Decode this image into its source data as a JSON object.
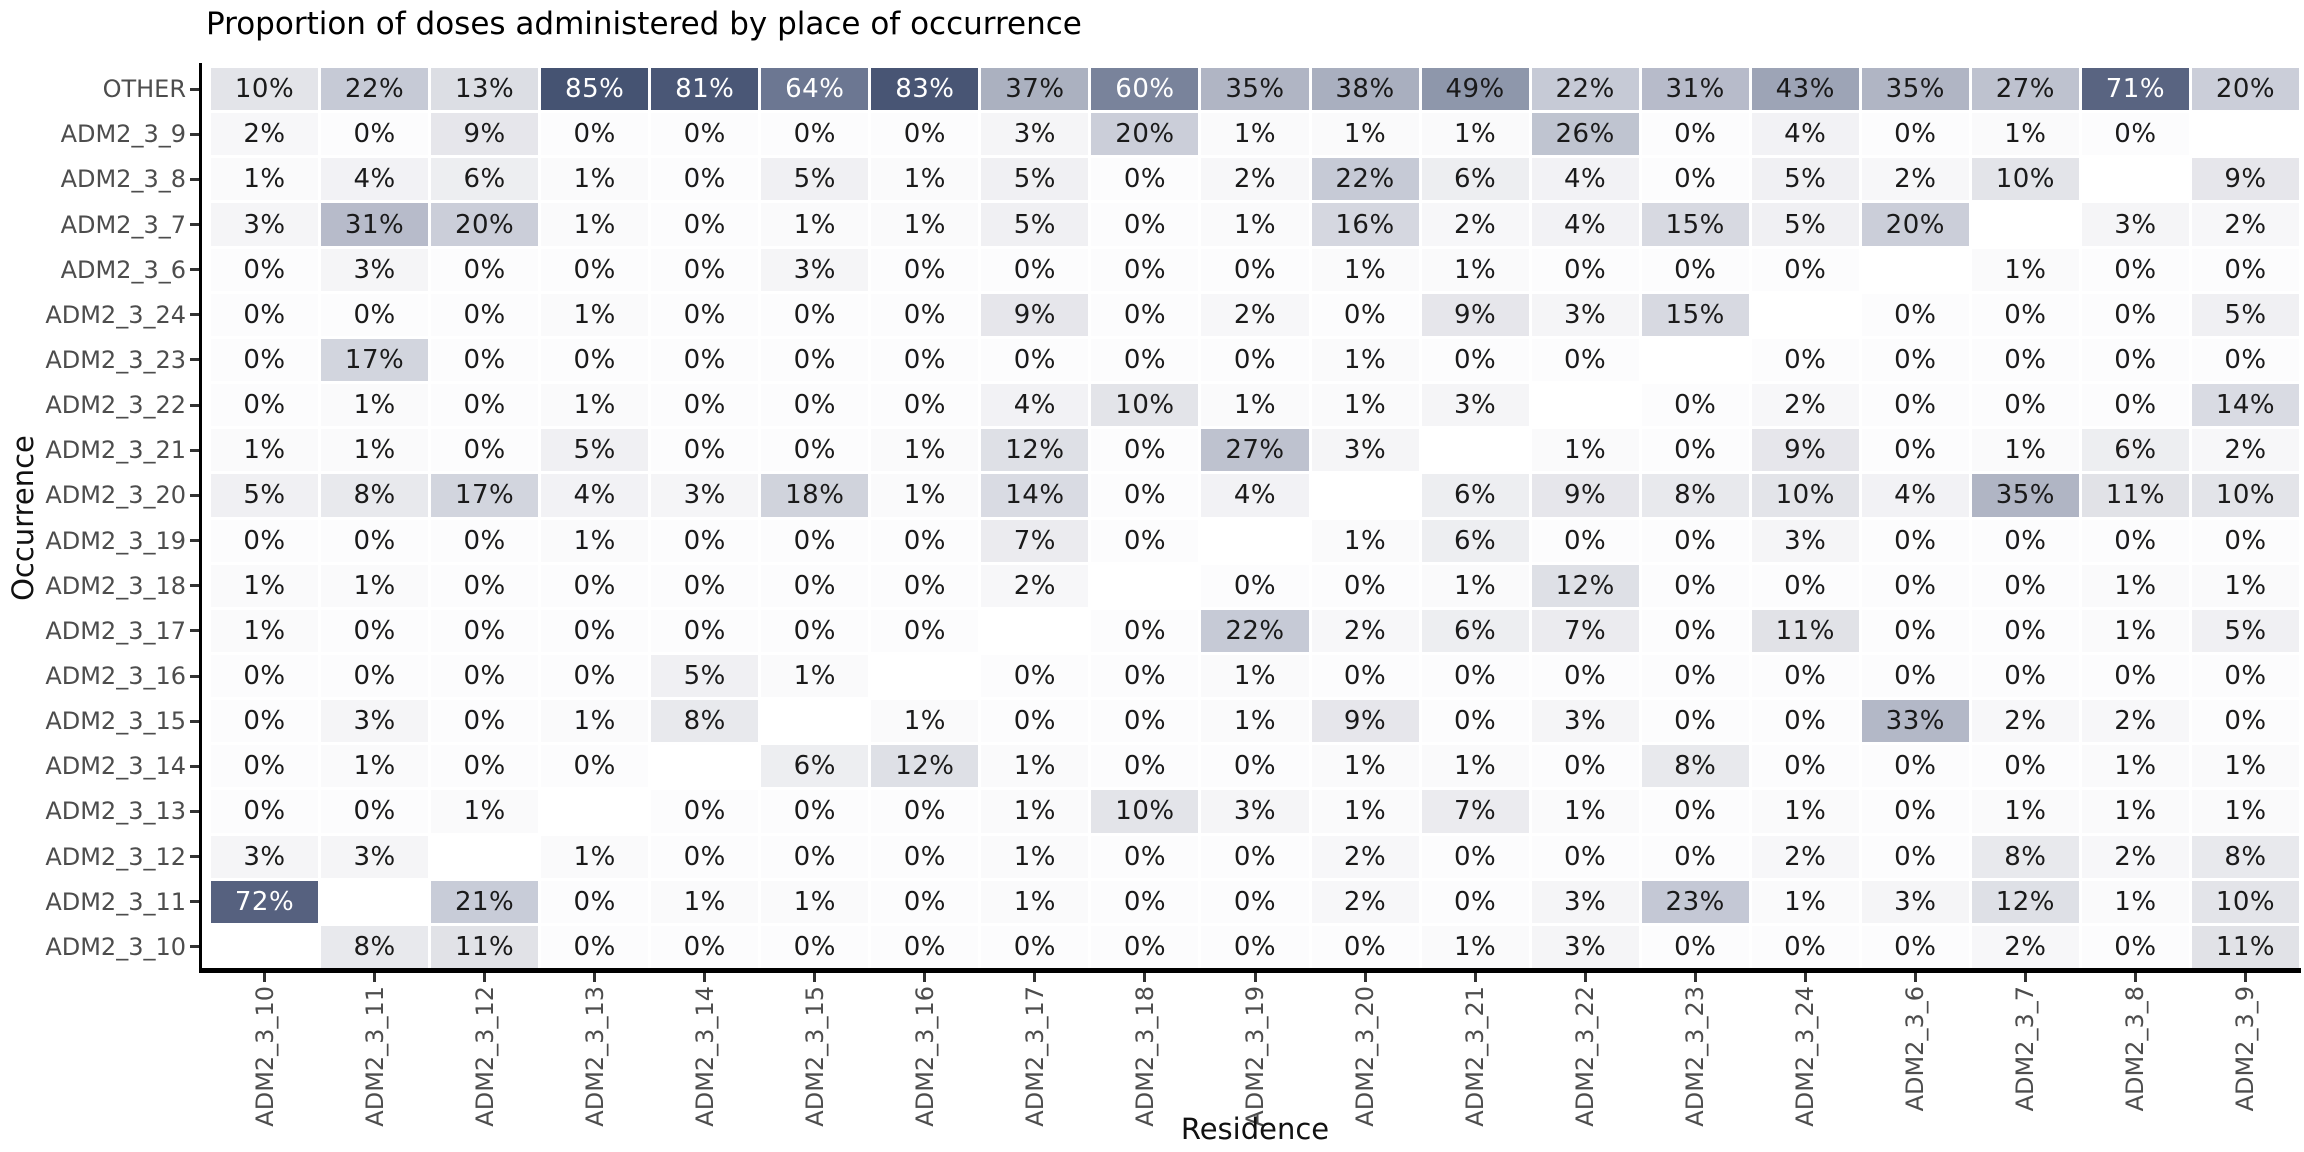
{
  "chart": {
    "title": "Proportion of doses administered by place of occurrence",
    "xlabel": "Residence",
    "ylabel": "Occurrence"
  },
  "chart_data": {
    "type": "heatmap",
    "title": "Proportion of doses administered by place of occurrence",
    "xlabel": "Residence",
    "ylabel": "Occurrence",
    "value_unit": "%",
    "legend": "none",
    "grid": false,
    "columns": [
      "ADM2_3_10",
      "ADM2_3_11",
      "ADM2_3_12",
      "ADM2_3_13",
      "ADM2_3_14",
      "ADM2_3_15",
      "ADM2_3_16",
      "ADM2_3_17",
      "ADM2_3_18",
      "ADM2_3_19",
      "ADM2_3_20",
      "ADM2_3_21",
      "ADM2_3_22",
      "ADM2_3_23",
      "ADM2_3_24",
      "ADM2_3_6",
      "ADM2_3_7",
      "ADM2_3_8",
      "ADM2_3_9"
    ],
    "rows": [
      {
        "label": "OTHER",
        "values": [
          10,
          22,
          13,
          85,
          81,
          64,
          83,
          37,
          60,
          35,
          38,
          49,
          22,
          31,
          43,
          35,
          27,
          71,
          20
        ]
      },
      {
        "label": "ADM2_3_9",
        "values": [
          2,
          0,
          9,
          0,
          0,
          0,
          0,
          3,
          20,
          1,
          1,
          1,
          26,
          0,
          4,
          0,
          1,
          0,
          null
        ]
      },
      {
        "label": "ADM2_3_8",
        "values": [
          1,
          4,
          6,
          1,
          0,
          5,
          1,
          5,
          0,
          2,
          22,
          6,
          4,
          0,
          5,
          2,
          10,
          null,
          9
        ]
      },
      {
        "label": "ADM2_3_7",
        "values": [
          3,
          31,
          20,
          1,
          0,
          1,
          1,
          5,
          0,
          1,
          16,
          2,
          4,
          15,
          5,
          20,
          null,
          3,
          2
        ]
      },
      {
        "label": "ADM2_3_6",
        "values": [
          0,
          3,
          0,
          0,
          0,
          3,
          0,
          0,
          0,
          0,
          1,
          1,
          0,
          0,
          0,
          null,
          1,
          0,
          0
        ]
      },
      {
        "label": "ADM2_3_24",
        "values": [
          0,
          0,
          0,
          1,
          0,
          0,
          0,
          9,
          0,
          2,
          0,
          9,
          3,
          15,
          null,
          0,
          0,
          0,
          5
        ]
      },
      {
        "label": "ADM2_3_23",
        "values": [
          0,
          17,
          0,
          0,
          0,
          0,
          0,
          0,
          0,
          0,
          1,
          0,
          0,
          null,
          0,
          0,
          0,
          0,
          0
        ]
      },
      {
        "label": "ADM2_3_22",
        "values": [
          0,
          1,
          0,
          1,
          0,
          0,
          0,
          4,
          10,
          1,
          1,
          3,
          null,
          0,
          2,
          0,
          0,
          0,
          14
        ]
      },
      {
        "label": "ADM2_3_21",
        "values": [
          1,
          1,
          0,
          5,
          0,
          0,
          1,
          12,
          0,
          27,
          3,
          null,
          1,
          0,
          9,
          0,
          1,
          6,
          2
        ]
      },
      {
        "label": "ADM2_3_20",
        "values": [
          5,
          8,
          17,
          4,
          3,
          18,
          1,
          14,
          0,
          4,
          null,
          6,
          9,
          8,
          10,
          4,
          35,
          11,
          10
        ]
      },
      {
        "label": "ADM2_3_19",
        "values": [
          0,
          0,
          0,
          1,
          0,
          0,
          0,
          7,
          0,
          null,
          1,
          6,
          0,
          0,
          3,
          0,
          0,
          0,
          0
        ]
      },
      {
        "label": "ADM2_3_18",
        "values": [
          1,
          1,
          0,
          0,
          0,
          0,
          0,
          2,
          null,
          0,
          0,
          1,
          12,
          0,
          0,
          0,
          0,
          1,
          1
        ]
      },
      {
        "label": "ADM2_3_17",
        "values": [
          1,
          0,
          0,
          0,
          0,
          0,
          0,
          null,
          0,
          22,
          2,
          6,
          7,
          0,
          11,
          0,
          0,
          1,
          5
        ]
      },
      {
        "label": "ADM2_3_16",
        "values": [
          0,
          0,
          0,
          0,
          5,
          1,
          null,
          0,
          0,
          1,
          0,
          0,
          0,
          0,
          0,
          0,
          0,
          0,
          0
        ]
      },
      {
        "label": "ADM2_3_15",
        "values": [
          0,
          3,
          0,
          1,
          8,
          null,
          1,
          0,
          0,
          1,
          9,
          0,
          3,
          0,
          0,
          33,
          2,
          2,
          0
        ]
      },
      {
        "label": "ADM2_3_14",
        "values": [
          0,
          1,
          0,
          0,
          null,
          6,
          12,
          1,
          0,
          0,
          1,
          1,
          0,
          8,
          0,
          0,
          0,
          1,
          1
        ]
      },
      {
        "label": "ADM2_3_13",
        "values": [
          0,
          0,
          1,
          null,
          0,
          0,
          0,
          1,
          10,
          3,
          1,
          7,
          1,
          0,
          1,
          0,
          1,
          1,
          1
        ]
      },
      {
        "label": "ADM2_3_12",
        "values": [
          3,
          3,
          null,
          1,
          0,
          0,
          0,
          1,
          0,
          0,
          2,
          0,
          0,
          0,
          2,
          0,
          8,
          2,
          8
        ]
      },
      {
        "label": "ADM2_3_11",
        "values": [
          72,
          null,
          21,
          0,
          1,
          1,
          0,
          1,
          0,
          0,
          2,
          0,
          3,
          23,
          1,
          3,
          12,
          1,
          10
        ]
      },
      {
        "label": "ADM2_3_10",
        "values": [
          null,
          8,
          11,
          0,
          0,
          0,
          0,
          0,
          0,
          0,
          0,
          1,
          3,
          0,
          0,
          0,
          2,
          0,
          11
        ]
      }
    ],
    "color_scale": {
      "anchors": [
        [
          0,
          "#fcfcfd"
        ],
        [
          10,
          "#e3e4e9"
        ],
        [
          22,
          "#c6cad6"
        ],
        [
          35,
          "#b0b5c4"
        ],
        [
          49,
          "#8e97ab"
        ],
        [
          60,
          "#79839b"
        ],
        [
          64,
          "#6c7792"
        ],
        [
          72,
          "#56617f"
        ],
        [
          85,
          "#455372"
        ]
      ],
      "white_text_threshold": 55,
      "dark_text_color": "#1a1a1a",
      "light_text_color": "#ffffff",
      "missing_color": "#ffffff"
    },
    "axis_style": {
      "spine_color": "#000000",
      "tick_color": "#333333",
      "tick_label_color": "#4d4d4d",
      "title_color": "#000000",
      "axis_label_color": "#111111"
    }
  }
}
